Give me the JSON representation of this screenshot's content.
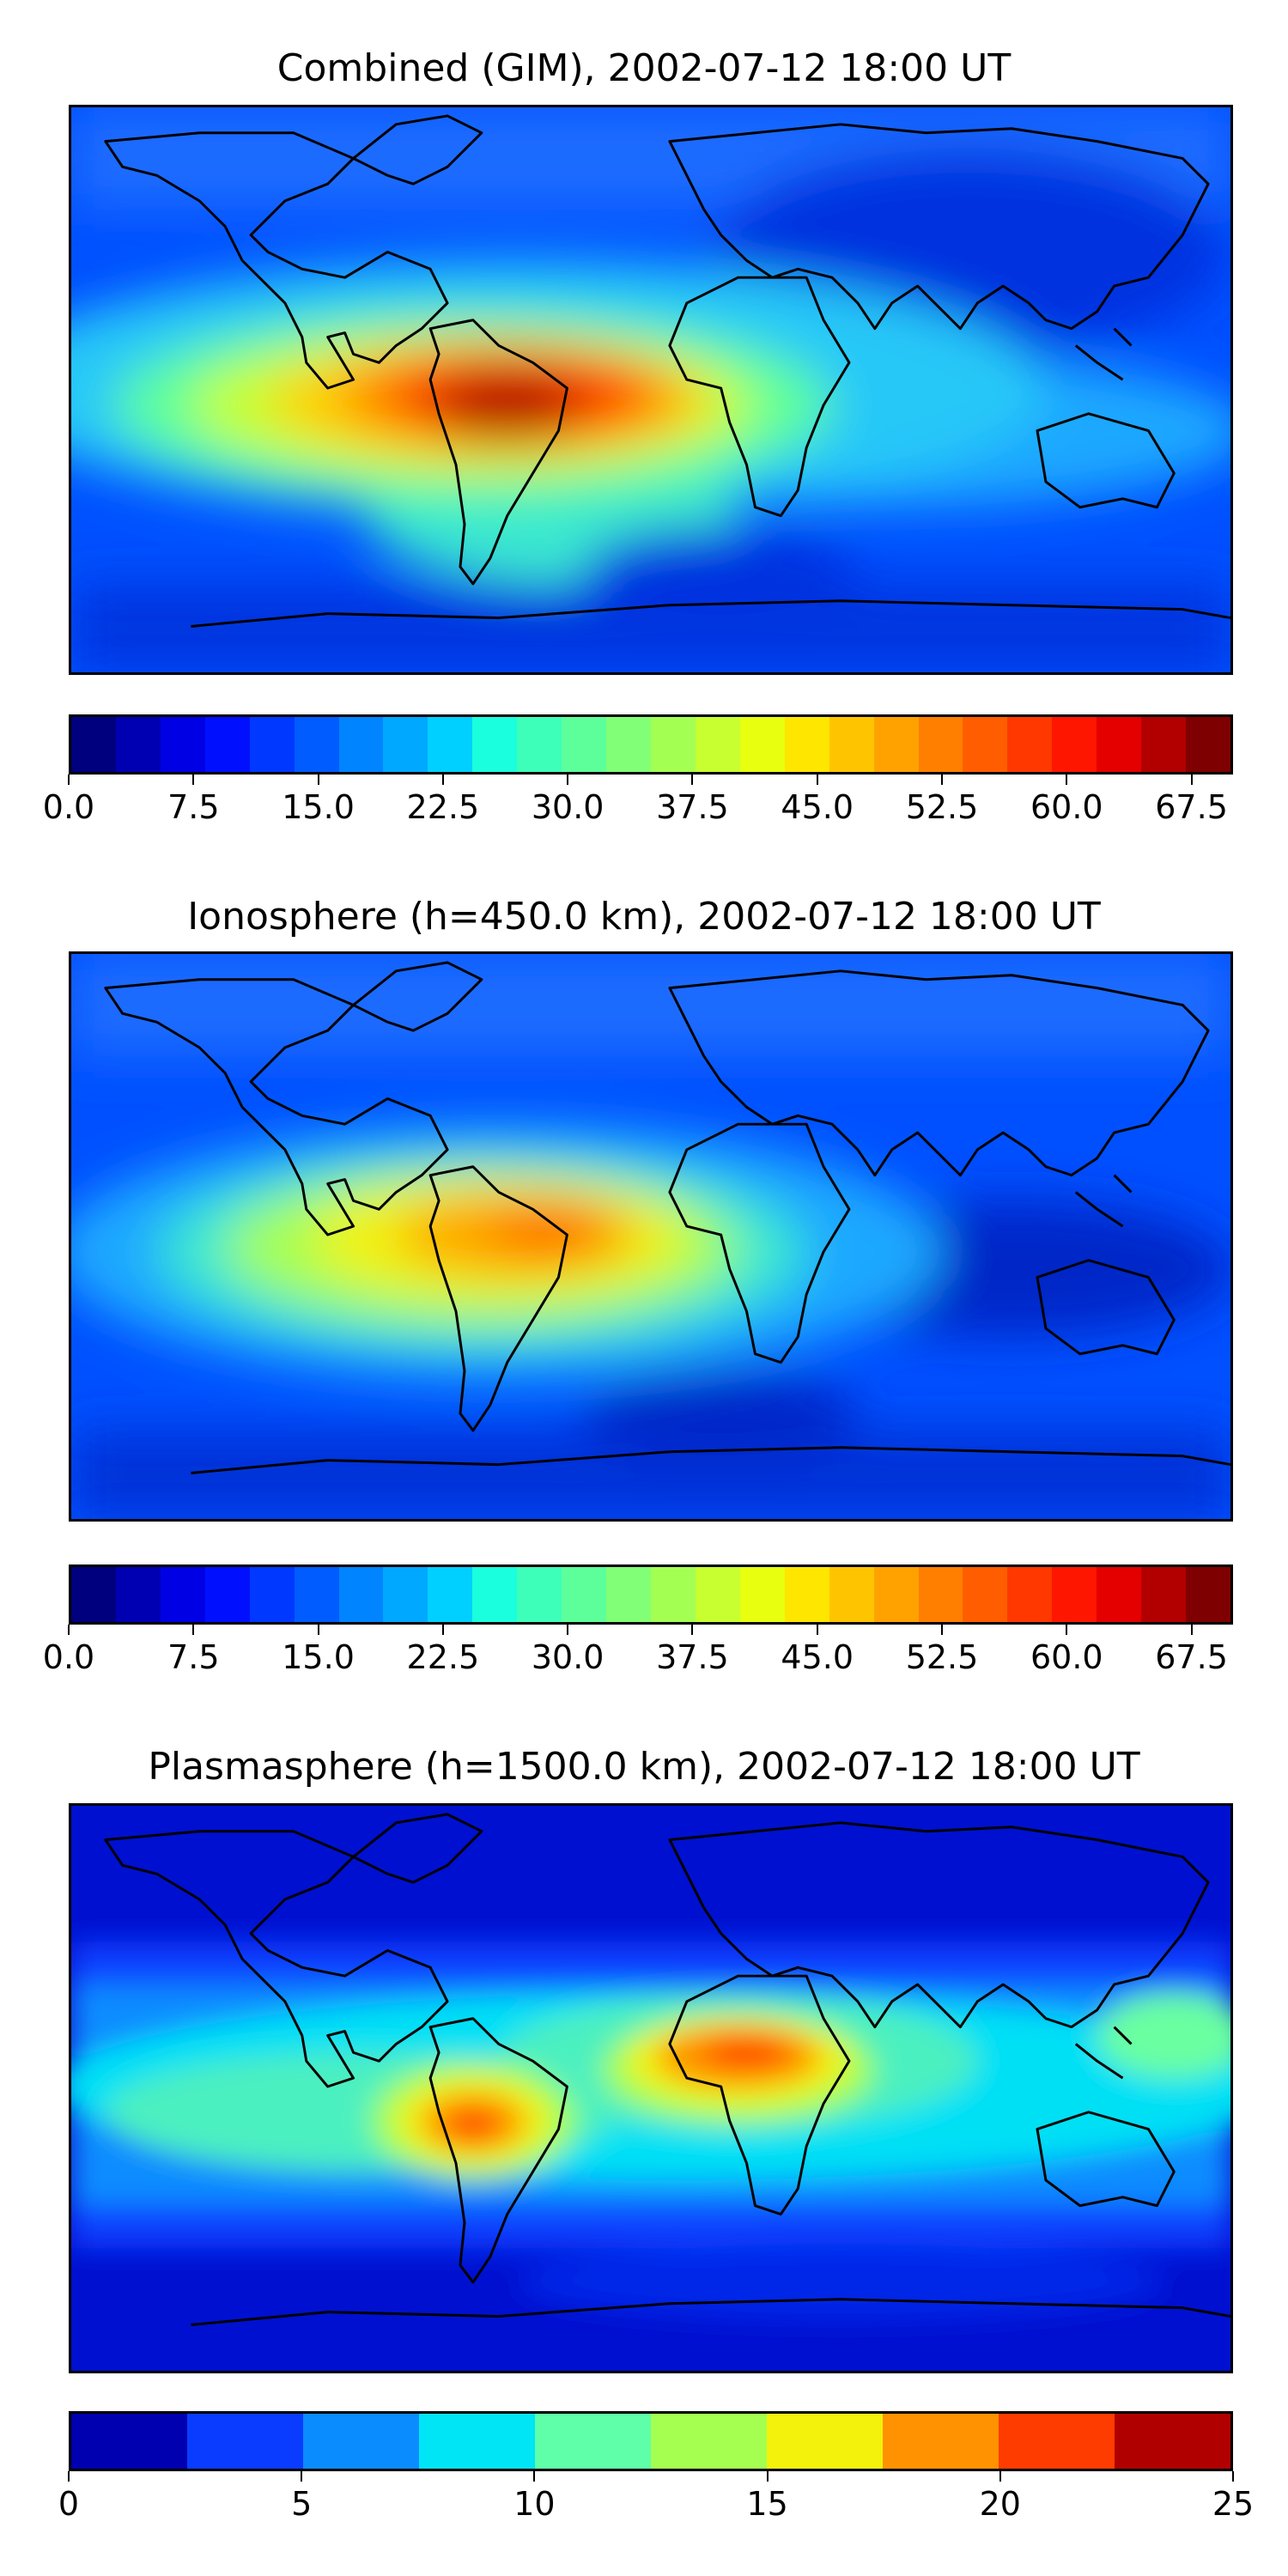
{
  "panels": [
    {
      "title": "Combined (GIM), 2002-07-12 18:00 UT",
      "colorbar": {
        "colors": [
          "#00007f",
          "#0000b2",
          "#0000e5",
          "#0010ff",
          "#0038ff",
          "#005cff",
          "#0084ff",
          "#00a8ff",
          "#00d0ff",
          "#1affdd",
          "#3dffb9",
          "#5dff9a",
          "#81ff76",
          "#a4ff53",
          "#c7ff30",
          "#e8ff0f",
          "#ffe600",
          "#ffc400",
          "#ffa200",
          "#ff7f00",
          "#ff5d00",
          "#ff3800",
          "#ff1600",
          "#e50000",
          "#b20000",
          "#7f0000"
        ],
        "ticks": [
          "0.0",
          "7.5",
          "15.0",
          "22.5",
          "30.0",
          "37.5",
          "45.0",
          "52.5",
          "60.0",
          "67.5"
        ],
        "tick_values": [
          0,
          7.5,
          15,
          22.5,
          30,
          37.5,
          45,
          52.5,
          60,
          67.5
        ],
        "range": [
          0,
          70
        ]
      }
    },
    {
      "title": "Ionosphere  (h=450.0 km), 2002-07-12 18:00 UT",
      "colorbar": {
        "colors": [
          "#00007f",
          "#0000b2",
          "#0000e5",
          "#0010ff",
          "#0038ff",
          "#005cff",
          "#0084ff",
          "#00a8ff",
          "#00d0ff",
          "#1affdd",
          "#3dffb9",
          "#5dff9a",
          "#81ff76",
          "#a4ff53",
          "#c7ff30",
          "#e8ff0f",
          "#ffe600",
          "#ffc400",
          "#ffa200",
          "#ff7f00",
          "#ff5d00",
          "#ff3800",
          "#ff1600",
          "#e50000",
          "#b20000",
          "#7f0000"
        ],
        "ticks": [
          "0.0",
          "7.5",
          "15.0",
          "22.5",
          "30.0",
          "37.5",
          "45.0",
          "52.5",
          "60.0",
          "67.5"
        ],
        "tick_values": [
          0,
          7.5,
          15,
          22.5,
          30,
          37.5,
          45,
          52.5,
          60,
          67.5
        ],
        "range": [
          0,
          70
        ]
      }
    },
    {
      "title": "Plasmasphere (h=1500.0 km), 2002-07-12 18:00 UT",
      "colorbar": {
        "colors": [
          "#0000b0",
          "#0a3cff",
          "#0a8cff",
          "#00e5f5",
          "#5effa8",
          "#a4ff50",
          "#f2f20c",
          "#ff9200",
          "#ff3c00",
          "#b00000"
        ],
        "ticks": [
          "0",
          "5",
          "10",
          "15",
          "20",
          "25"
        ],
        "tick_values": [
          0,
          5,
          10,
          15,
          20,
          25
        ],
        "range": [
          0,
          25
        ]
      }
    }
  ]
}
